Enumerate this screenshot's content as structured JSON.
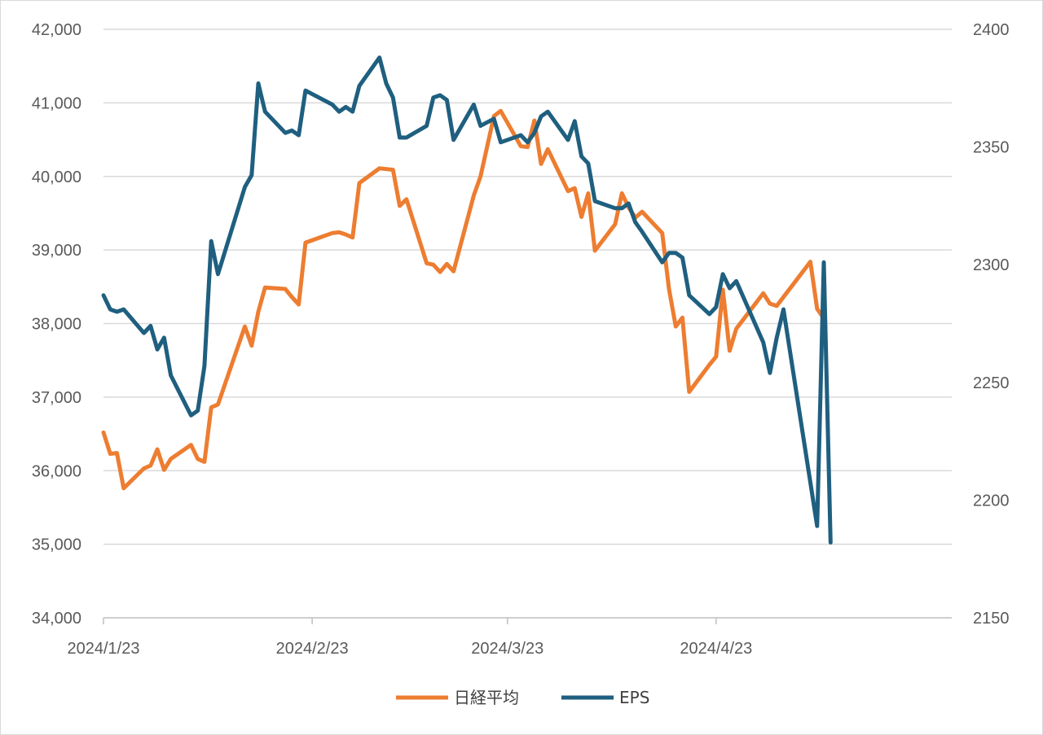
{
  "chart_data": {
    "type": "line",
    "title": "",
    "xlabel": "",
    "ylabel": "",
    "y_left": {
      "min": 34000,
      "max": 42000,
      "step": 1000,
      "tick_labels": [
        "34,000",
        "35,000",
        "36,000",
        "37,000",
        "38,000",
        "39,000",
        "40,000",
        "41,000",
        "42,000"
      ]
    },
    "y_right": {
      "min": 2150,
      "max": 2400,
      "step": 50,
      "tick_labels": [
        "2150",
        "2200",
        "2250",
        "2300",
        "2350",
        "2400"
      ]
    },
    "x_range": [
      "2024-01-23",
      "2024-05-28"
    ],
    "x_tick_labels": [
      {
        "date": "2024-01-23",
        "label": "2024/1/23"
      },
      {
        "date": "2024-02-23",
        "label": "2024/2/23"
      },
      {
        "date": "2024-03-23",
        "label": "2024/3/23"
      },
      {
        "date": "2024-04-23",
        "label": "2024/4/23"
      }
    ],
    "grid": true,
    "legend_position": "bottom",
    "series": [
      {
        "name": "日経平均",
        "axis": "left",
        "color": "#ED7D31",
        "points": [
          [
            "2024-01-23",
            36520
          ],
          [
            "2024-01-24",
            36230
          ],
          [
            "2024-01-25",
            36240
          ],
          [
            "2024-01-26",
            35760
          ],
          [
            "2024-01-29",
            36030
          ],
          [
            "2024-01-30",
            36070
          ],
          [
            "2024-01-31",
            36290
          ],
          [
            "2024-02-01",
            36010
          ],
          [
            "2024-02-02",
            36160
          ],
          [
            "2024-02-05",
            36350
          ],
          [
            "2024-02-06",
            36160
          ],
          [
            "2024-02-07",
            36120
          ],
          [
            "2024-02-08",
            36860
          ],
          [
            "2024-02-09",
            36900
          ],
          [
            "2024-02-13",
            37960
          ],
          [
            "2024-02-14",
            37700
          ],
          [
            "2024-02-15",
            38160
          ],
          [
            "2024-02-16",
            38490
          ],
          [
            "2024-02-19",
            38470
          ],
          [
            "2024-02-20",
            38360
          ],
          [
            "2024-02-21",
            38260
          ],
          [
            "2024-02-22",
            39100
          ],
          [
            "2024-02-26",
            39230
          ],
          [
            "2024-02-27",
            39240
          ],
          [
            "2024-02-28",
            39210
          ],
          [
            "2024-02-29",
            39170
          ],
          [
            "2024-03-01",
            39910
          ],
          [
            "2024-03-04",
            40110
          ],
          [
            "2024-03-05",
            40100
          ],
          [
            "2024-03-06",
            40090
          ],
          [
            "2024-03-07",
            39600
          ],
          [
            "2024-03-08",
            39690
          ],
          [
            "2024-03-11",
            38820
          ],
          [
            "2024-03-12",
            38800
          ],
          [
            "2024-03-13",
            38700
          ],
          [
            "2024-03-14",
            38810
          ],
          [
            "2024-03-15",
            38710
          ],
          [
            "2024-03-18",
            39740
          ],
          [
            "2024-03-19",
            40000
          ],
          [
            "2024-03-21",
            40820
          ],
          [
            "2024-03-22",
            40890
          ],
          [
            "2024-03-25",
            40410
          ],
          [
            "2024-03-26",
            40400
          ],
          [
            "2024-03-27",
            40760
          ],
          [
            "2024-03-28",
            40170
          ],
          [
            "2024-03-29",
            40370
          ],
          [
            "2024-04-01",
            39800
          ],
          [
            "2024-04-02",
            39840
          ],
          [
            "2024-04-03",
            39450
          ],
          [
            "2024-04-04",
            39770
          ],
          [
            "2024-04-05",
            38990
          ],
          [
            "2024-04-08",
            39350
          ],
          [
            "2024-04-09",
            39770
          ],
          [
            "2024-04-10",
            39580
          ],
          [
            "2024-04-11",
            39440
          ],
          [
            "2024-04-12",
            39520
          ],
          [
            "2024-04-15",
            39230
          ],
          [
            "2024-04-16",
            38470
          ],
          [
            "2024-04-17",
            37960
          ],
          [
            "2024-04-18",
            38080
          ],
          [
            "2024-04-19",
            37070
          ],
          [
            "2024-04-22",
            37440
          ],
          [
            "2024-04-23",
            37550
          ],
          [
            "2024-04-24",
            38460
          ],
          [
            "2024-04-25",
            37630
          ],
          [
            "2024-04-26",
            37930
          ],
          [
            "2024-04-30",
            38410
          ],
          [
            "2024-05-01",
            38270
          ],
          [
            "2024-05-02",
            38240
          ],
          [
            "2024-05-07",
            38840
          ],
          [
            "2024-05-08",
            38200
          ],
          [
            "2024-05-09",
            38070
          ]
        ]
      },
      {
        "name": "EPS",
        "axis": "right",
        "color": "#1F5F7F",
        "points": [
          [
            "2024-01-23",
            2287
          ],
          [
            "2024-01-24",
            2281
          ],
          [
            "2024-01-25",
            2280
          ],
          [
            "2024-01-26",
            2281
          ],
          [
            "2024-01-29",
            2271
          ],
          [
            "2024-01-30",
            2274
          ],
          [
            "2024-01-31",
            2264
          ],
          [
            "2024-02-01",
            2269
          ],
          [
            "2024-02-02",
            2253
          ],
          [
            "2024-02-05",
            2236
          ],
          [
            "2024-02-06",
            2238
          ],
          [
            "2024-02-07",
            2257
          ],
          [
            "2024-02-08",
            2310
          ],
          [
            "2024-02-09",
            2296
          ],
          [
            "2024-02-13",
            2333
          ],
          [
            "2024-02-14",
            2338
          ],
          [
            "2024-02-15",
            2377
          ],
          [
            "2024-02-16",
            2365
          ],
          [
            "2024-02-19",
            2356
          ],
          [
            "2024-02-20",
            2357
          ],
          [
            "2024-02-21",
            2355
          ],
          [
            "2024-02-22",
            2374
          ],
          [
            "2024-02-26",
            2368
          ],
          [
            "2024-02-27",
            2365
          ],
          [
            "2024-02-28",
            2367
          ],
          [
            "2024-02-29",
            2365
          ],
          [
            "2024-03-01",
            2376
          ],
          [
            "2024-03-04",
            2388
          ],
          [
            "2024-03-05",
            2377
          ],
          [
            "2024-03-06",
            2371
          ],
          [
            "2024-03-07",
            2354
          ],
          [
            "2024-03-08",
            2354
          ],
          [
            "2024-03-11",
            2359
          ],
          [
            "2024-03-12",
            2371
          ],
          [
            "2024-03-13",
            2372
          ],
          [
            "2024-03-14",
            2370
          ],
          [
            "2024-03-15",
            2353
          ],
          [
            "2024-03-18",
            2368
          ],
          [
            "2024-03-19",
            2359
          ],
          [
            "2024-03-21",
            2362
          ],
          [
            "2024-03-22",
            2352
          ],
          [
            "2024-03-25",
            2355
          ],
          [
            "2024-03-26",
            2352
          ],
          [
            "2024-03-27",
            2356
          ],
          [
            "2024-03-28",
            2363
          ],
          [
            "2024-03-29",
            2365
          ],
          [
            "2024-04-01",
            2353
          ],
          [
            "2024-04-02",
            2361
          ],
          [
            "2024-04-03",
            2346
          ],
          [
            "2024-04-04",
            2343
          ],
          [
            "2024-04-05",
            2327
          ],
          [
            "2024-04-08",
            2324
          ],
          [
            "2024-04-09",
            2324
          ],
          [
            "2024-04-10",
            2326
          ],
          [
            "2024-04-11",
            2318
          ],
          [
            "2024-04-12",
            2314
          ],
          [
            "2024-04-15",
            2301
          ],
          [
            "2024-04-16",
            2305
          ],
          [
            "2024-04-17",
            2305
          ],
          [
            "2024-04-18",
            2303
          ],
          [
            "2024-04-19",
            2287
          ],
          [
            "2024-04-22",
            2279
          ],
          [
            "2024-04-23",
            2282
          ],
          [
            "2024-04-24",
            2296
          ],
          [
            "2024-04-25",
            2290
          ],
          [
            "2024-04-26",
            2293
          ],
          [
            "2024-04-30",
            2267
          ],
          [
            "2024-05-01",
            2254
          ],
          [
            "2024-05-02",
            2269
          ],
          [
            "2024-05-03",
            2281
          ],
          [
            "2024-05-08",
            2189
          ],
          [
            "2024-05-09",
            2301
          ],
          [
            "2024-05-10",
            2182
          ]
        ]
      }
    ]
  }
}
